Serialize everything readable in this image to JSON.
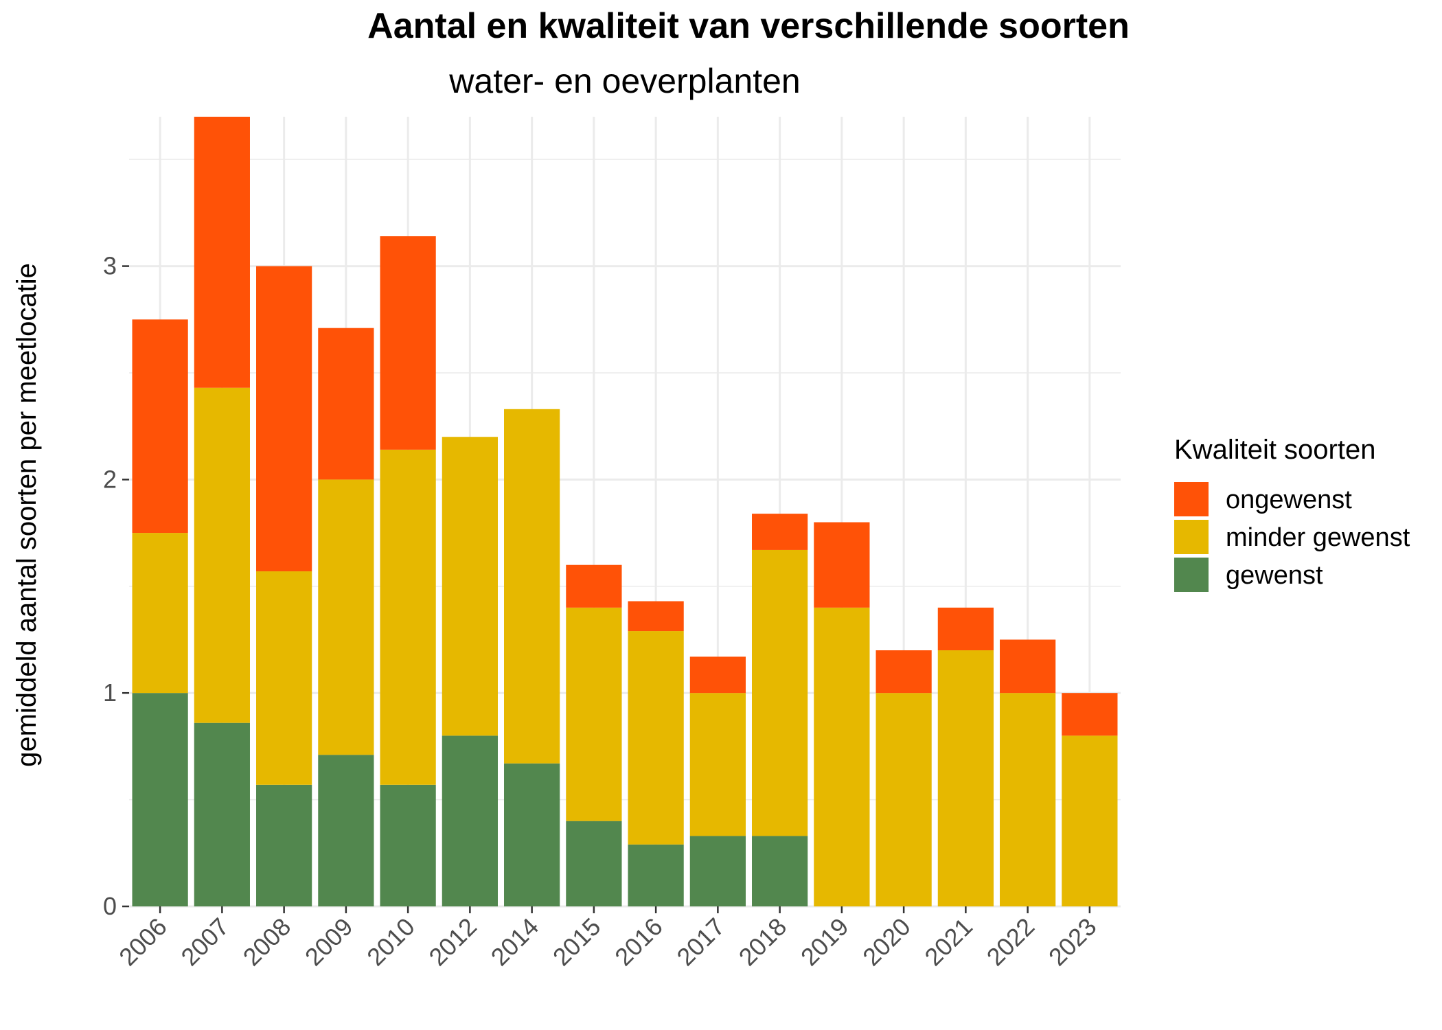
{
  "chart_data": {
    "type": "bar",
    "stacked": true,
    "title": "Aantal en kwaliteit van verschillende soorten",
    "subtitle": "water- en oeverplanten",
    "xlabel": "",
    "ylabel": "gemiddeld aantal soorten per meetlocatie",
    "ylim": [
      0,
      3.7
    ],
    "yticks": [
      0,
      1,
      2,
      3
    ],
    "ytick_labels": [
      "0",
      "1",
      "2",
      "3"
    ],
    "grid": true,
    "legend_title": "Kwaliteit soorten",
    "legend_position": "right",
    "categories": [
      "2006",
      "2007",
      "2008",
      "2009",
      "2010",
      "2012",
      "2014",
      "2015",
      "2016",
      "2017",
      "2018",
      "2019",
      "2020",
      "2021",
      "2022",
      "2023"
    ],
    "series": [
      {
        "name": "gewenst",
        "color": "#52874E",
        "values": [
          1.0,
          0.86,
          0.57,
          0.71,
          0.57,
          0.8,
          0.67,
          0.4,
          0.29,
          0.33,
          0.33,
          0.0,
          0.0,
          0.0,
          0.0,
          0.0
        ]
      },
      {
        "name": "minder gewenst",
        "color": "#E6B800",
        "values": [
          0.75,
          1.57,
          1.0,
          1.29,
          1.57,
          1.4,
          1.66,
          1.0,
          1.0,
          0.67,
          1.34,
          1.4,
          1.0,
          1.2,
          1.0,
          0.8
        ]
      },
      {
        "name": "ongewenst",
        "color": "#FF5207",
        "values": [
          1.0,
          1.29,
          1.43,
          0.71,
          1.0,
          0.0,
          0.0,
          0.2,
          0.14,
          0.17,
          0.17,
          0.4,
          0.2,
          0.2,
          0.25,
          0.2
        ]
      }
    ],
    "legend_order": [
      "ongewenst",
      "minder gewenst",
      "gewenst"
    ]
  }
}
